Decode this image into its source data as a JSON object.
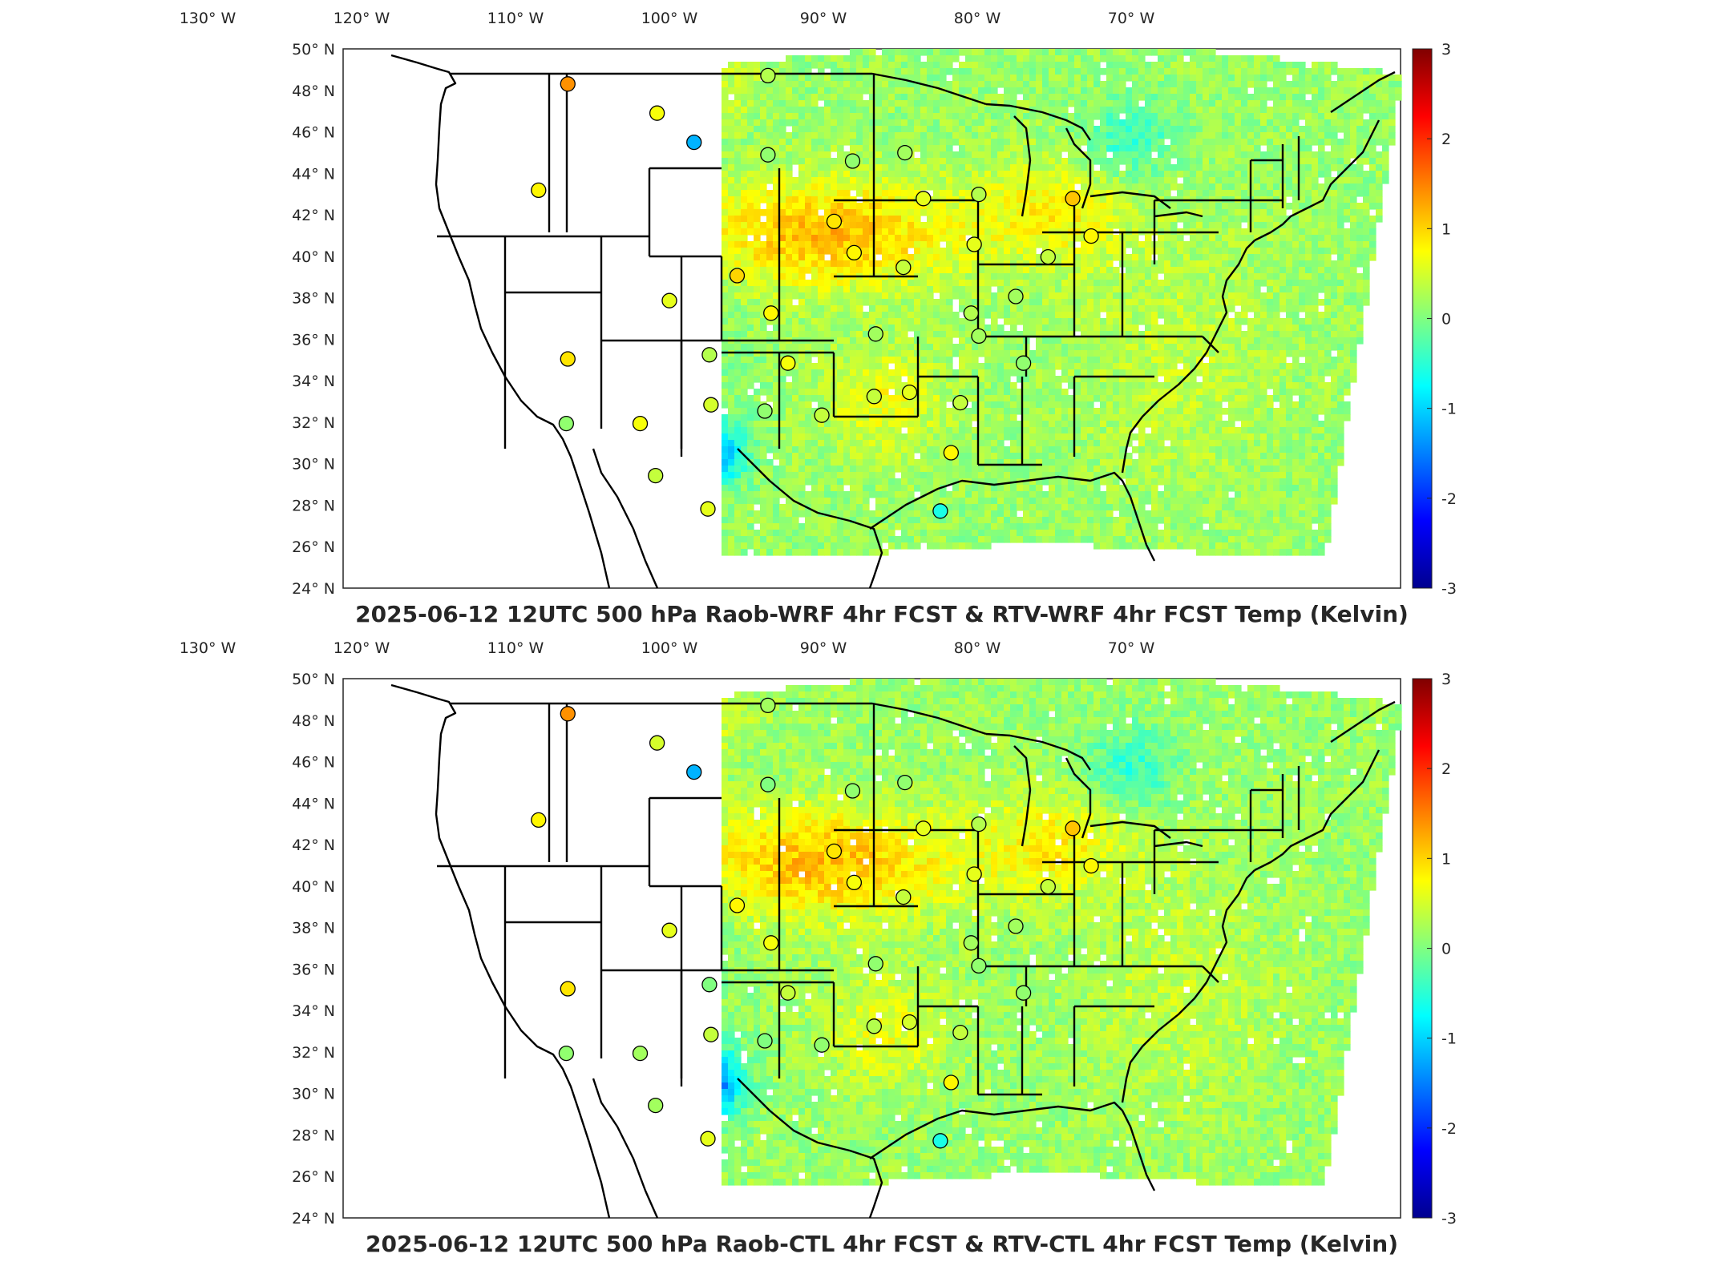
{
  "colors": {
    "colormap": [
      "#00008f",
      "#0000ff",
      "#0080ff",
      "#00ffff",
      "#80ff80",
      "#ffff00",
      "#ff8000",
      "#ff0000",
      "#800000"
    ],
    "coastline": "#000000",
    "axes_box": "#262626",
    "background": "#ffffff"
  },
  "panels": [
    {
      "title": "2025-06-12 12UTC 500 hPa Raob-WRF 4hr FCST & RTV-WRF 4hr FCST Temp (Kelvin)",
      "lon_ticks": [
        "130° W",
        "120° W",
        "110° W",
        "100° W",
        "90° W",
        "80° W",
        "70° W"
      ],
      "lat_ticks": [
        "50° N",
        "48° N",
        "46° N",
        "44° N",
        "42° N",
        "40° N",
        "38° N",
        "36° N",
        "34° N",
        "32° N",
        "30° N",
        "28° N",
        "26° N",
        "24° N"
      ],
      "colorbar": {
        "ticks": [
          "3",
          "2",
          "1",
          "0",
          "-1",
          "-2",
          "-3"
        ],
        "range": [
          -3,
          3
        ]
      },
      "stations": [
        {
          "lon": -106.6,
          "lat": 48.2,
          "value": 1.4
        },
        {
          "lon": -100.8,
          "lat": 46.8,
          "value": 0.7
        },
        {
          "lon": -98.4,
          "lat": 45.4,
          "value": -1.2
        },
        {
          "lon": -108.5,
          "lat": 43.1,
          "value": 0.8
        },
        {
          "lon": -93.6,
          "lat": 48.6,
          "value": 0.3
        },
        {
          "lon": -93.6,
          "lat": 44.8,
          "value": 0.1
        },
        {
          "lon": -88.1,
          "lat": 44.5,
          "value": 0.1
        },
        {
          "lon": -84.7,
          "lat": 44.9,
          "value": 0.2
        },
        {
          "lon": -83.5,
          "lat": 42.7,
          "value": 0.6
        },
        {
          "lon": -79.9,
          "lat": 42.9,
          "value": 0.3
        },
        {
          "lon": -73.8,
          "lat": 42.7,
          "value": 1.1
        },
        {
          "lon": -72.6,
          "lat": 40.9,
          "value": 0.8
        },
        {
          "lon": -89.3,
          "lat": 41.6,
          "value": 0.9
        },
        {
          "lon": -88.0,
          "lat": 40.1,
          "value": 0.8
        },
        {
          "lon": -84.8,
          "lat": 39.4,
          "value": 0.4
        },
        {
          "lon": -80.2,
          "lat": 40.5,
          "value": 0.6
        },
        {
          "lon": -75.4,
          "lat": 39.9,
          "value": 0.4
        },
        {
          "lon": -77.5,
          "lat": 38.0,
          "value": 0.2
        },
        {
          "lon": -95.6,
          "lat": 39.0,
          "value": 1.0
        },
        {
          "lon": -100.0,
          "lat": 37.8,
          "value": 0.6
        },
        {
          "lon": -93.4,
          "lat": 37.2,
          "value": 0.8
        },
        {
          "lon": -97.4,
          "lat": 35.2,
          "value": 0.3
        },
        {
          "lon": -92.3,
          "lat": 34.8,
          "value": 0.7
        },
        {
          "lon": -86.6,
          "lat": 36.2,
          "value": 0.2
        },
        {
          "lon": -80.4,
          "lat": 37.2,
          "value": 0.3
        },
        {
          "lon": -79.9,
          "lat": 36.1,
          "value": 0.2
        },
        {
          "lon": -77.0,
          "lat": 34.8,
          "value": 0.1
        },
        {
          "lon": -106.6,
          "lat": 35.0,
          "value": 0.9
        },
        {
          "lon": -106.7,
          "lat": 31.9,
          "value": 0.1
        },
        {
          "lon": -101.9,
          "lat": 31.9,
          "value": 0.7
        },
        {
          "lon": -97.3,
          "lat": 32.8,
          "value": 0.5
        },
        {
          "lon": -93.8,
          "lat": 32.5,
          "value": 0.1
        },
        {
          "lon": -90.1,
          "lat": 32.3,
          "value": 0.4
        },
        {
          "lon": -86.7,
          "lat": 33.2,
          "value": 0.4
        },
        {
          "lon": -84.4,
          "lat": 33.4,
          "value": 0.6
        },
        {
          "lon": -81.1,
          "lat": 32.9,
          "value": 0.4
        },
        {
          "lon": -100.9,
          "lat": 29.4,
          "value": 0.4
        },
        {
          "lon": -97.5,
          "lat": 27.8,
          "value": 0.6
        },
        {
          "lon": -81.7,
          "lat": 30.5,
          "value": 0.8
        },
        {
          "lon": -82.4,
          "lat": 27.7,
          "value": -0.6
        }
      ]
    },
    {
      "title": "2025-06-12 12UTC 500 hPa Raob-CTL 4hr FCST & RTV-CTL 4hr FCST Temp (Kelvin)",
      "lon_ticks": [
        "130° W",
        "120° W",
        "110° W",
        "100° W",
        "90° W",
        "80° W",
        "70° W"
      ],
      "lat_ticks": [
        "50° N",
        "48° N",
        "46° N",
        "44° N",
        "42° N",
        "40° N",
        "38° N",
        "36° N",
        "34° N",
        "32° N",
        "30° N",
        "28° N",
        "26° N",
        "24° N"
      ],
      "colorbar": {
        "ticks": [
          "3",
          "2",
          "1",
          "0",
          "-1",
          "-2",
          "-3"
        ],
        "range": [
          -3,
          3
        ]
      },
      "stations": [
        {
          "lon": -106.6,
          "lat": 48.2,
          "value": 1.4
        },
        {
          "lon": -100.8,
          "lat": 46.8,
          "value": 0.5
        },
        {
          "lon": -98.4,
          "lat": 45.4,
          "value": -1.2
        },
        {
          "lon": -108.5,
          "lat": 43.1,
          "value": 0.8
        },
        {
          "lon": -93.6,
          "lat": 48.6,
          "value": 0.2
        },
        {
          "lon": -93.6,
          "lat": 44.8,
          "value": 0.0
        },
        {
          "lon": -88.1,
          "lat": 44.5,
          "value": 0.1
        },
        {
          "lon": -84.7,
          "lat": 44.9,
          "value": 0.1
        },
        {
          "lon": -83.5,
          "lat": 42.7,
          "value": 0.6
        },
        {
          "lon": -79.9,
          "lat": 42.9,
          "value": 0.3
        },
        {
          "lon": -73.8,
          "lat": 42.7,
          "value": 1.1
        },
        {
          "lon": -72.6,
          "lat": 40.9,
          "value": 0.8
        },
        {
          "lon": -89.3,
          "lat": 41.6,
          "value": 0.9
        },
        {
          "lon": -88.0,
          "lat": 40.1,
          "value": 0.7
        },
        {
          "lon": -84.8,
          "lat": 39.4,
          "value": 0.4
        },
        {
          "lon": -80.2,
          "lat": 40.5,
          "value": 0.6
        },
        {
          "lon": -75.4,
          "lat": 39.9,
          "value": 0.4
        },
        {
          "lon": -77.5,
          "lat": 38.0,
          "value": 0.2
        },
        {
          "lon": -95.6,
          "lat": 39.0,
          "value": 0.8
        },
        {
          "lon": -100.0,
          "lat": 37.8,
          "value": 0.6
        },
        {
          "lon": -93.4,
          "lat": 37.2,
          "value": 0.7
        },
        {
          "lon": -97.4,
          "lat": 35.2,
          "value": 0.0
        },
        {
          "lon": -92.3,
          "lat": 34.8,
          "value": 0.4
        },
        {
          "lon": -86.6,
          "lat": 36.2,
          "value": 0.1
        },
        {
          "lon": -80.4,
          "lat": 37.2,
          "value": 0.2
        },
        {
          "lon": -79.9,
          "lat": 36.1,
          "value": 0.1
        },
        {
          "lon": -77.0,
          "lat": 34.8,
          "value": 0.1
        },
        {
          "lon": -106.6,
          "lat": 35.0,
          "value": 0.9
        },
        {
          "lon": -106.7,
          "lat": 31.9,
          "value": 0.1
        },
        {
          "lon": -101.9,
          "lat": 31.9,
          "value": 0.2
        },
        {
          "lon": -97.3,
          "lat": 32.8,
          "value": 0.4
        },
        {
          "lon": -93.8,
          "lat": 32.5,
          "value": 0.0
        },
        {
          "lon": -90.1,
          "lat": 32.3,
          "value": 0.1
        },
        {
          "lon": -86.7,
          "lat": 33.2,
          "value": 0.3
        },
        {
          "lon": -84.4,
          "lat": 33.4,
          "value": 0.5
        },
        {
          "lon": -81.1,
          "lat": 32.9,
          "value": 0.4
        },
        {
          "lon": -100.9,
          "lat": 29.4,
          "value": 0.2
        },
        {
          "lon": -97.5,
          "lat": 27.8,
          "value": 0.6
        },
        {
          "lon": -81.7,
          "lat": 30.5,
          "value": 0.8
        },
        {
          "lon": -82.4,
          "lat": 27.7,
          "value": -0.6
        }
      ]
    }
  ]
}
